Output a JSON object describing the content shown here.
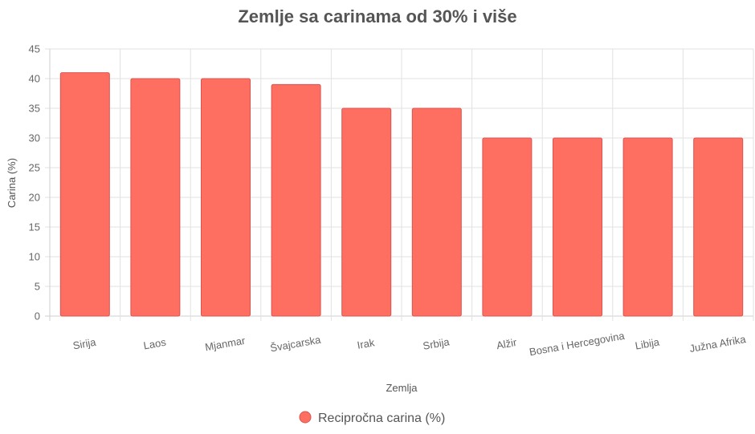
{
  "chart_data": {
    "type": "bar",
    "title": "Zemlje sa carinama od 30% i više",
    "xlabel": "Zemlja",
    "ylabel": "Carina (%)",
    "categories": [
      "Sirija",
      "Laos",
      "Mjanmar",
      "Švajcarska",
      "Irak",
      "Srbija",
      "Alžir",
      "Bosna i Hercegovina",
      "Libija",
      "Južna Afrika"
    ],
    "series": [
      {
        "name": "Recipročna carina (%)",
        "values": [
          41,
          40,
          40,
          39,
          35,
          35,
          30,
          30,
          30,
          30
        ]
      }
    ],
    "ylim": [
      0,
      45
    ],
    "ystep": 5,
    "grid": true,
    "legend_position": "bottom",
    "colors": {
      "bar_fill": "#ff6f61",
      "bar_stroke": "#d9534f"
    }
  }
}
